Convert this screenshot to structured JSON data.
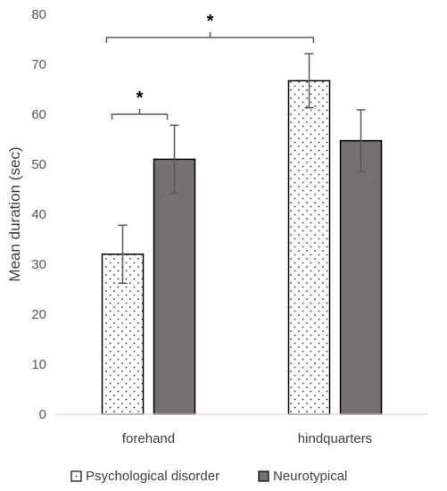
{
  "chart_data": {
    "type": "bar",
    "ylabel": "Mean duration (sec)",
    "ylim": [
      0,
      80
    ],
    "yticks": [
      0,
      10,
      20,
      30,
      40,
      50,
      60,
      70,
      80
    ],
    "categories": [
      "forehand",
      "hindquarters"
    ],
    "series": [
      {
        "name": "Psychological disorder",
        "values": [
          32,
          66.7
        ],
        "error": [
          5.8,
          5.4
        ],
        "fill": "dotted"
      },
      {
        "name": "Neurotypical",
        "values": [
          51,
          54.7
        ],
        "error": [
          6.8,
          6.2
        ],
        "fill": "#767171"
      }
    ],
    "legend_position": "bottom",
    "grid": false,
    "significance": [
      {
        "label": "*",
        "scope": "within forehand"
      },
      {
        "label": "*",
        "scope": "Psychological disorder: forehand vs hindquarters"
      }
    ]
  }
}
